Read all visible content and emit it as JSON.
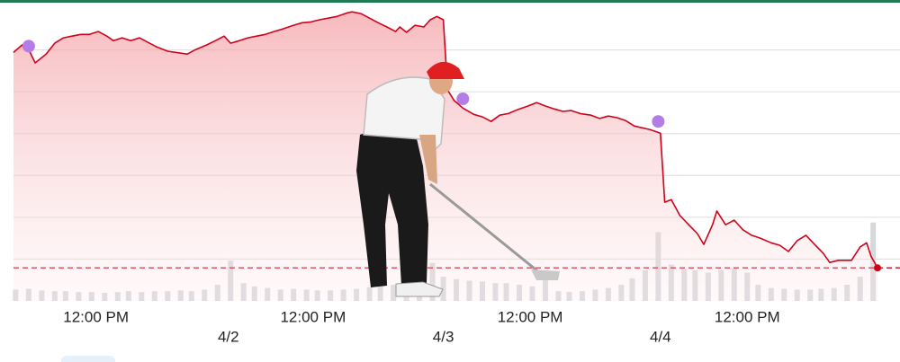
{
  "chart_data": {
    "type": "line",
    "x": [
      0,
      0.04,
      0.07,
      0.1,
      0.15,
      0.19,
      0.23,
      0.27,
      0.31,
      0.35,
      0.39,
      0.43,
      0.46,
      0.5,
      0.54,
      0.58,
      0.62,
      0.66,
      0.71,
      0.75,
      0.8,
      0.84,
      0.89,
      0.93,
      0.97,
      1.0,
      1.04,
      1.08,
      1.12,
      1.16,
      1.2,
      1.24,
      1.29,
      1.33,
      1.37,
      1.41,
      1.45,
      1.49,
      1.54,
      1.56,
      1.6,
      1.64,
      1.68,
      1.72,
      1.76,
      1.78,
      1.81,
      1.85,
      1.89,
      1.92,
      1.95,
      1.98,
      2.0,
      2.03,
      2.07,
      2.12,
      2.16,
      2.2,
      2.24,
      2.28,
      2.32,
      2.37,
      2.41,
      2.45,
      2.49,
      2.53,
      2.57,
      2.61,
      2.66,
      2.7,
      2.74,
      2.78,
      2.82,
      2.86,
      2.93,
      2.98,
      3.0,
      3.03,
      3.07,
      3.11,
      3.15,
      3.18,
      3.22,
      3.24,
      3.28,
      3.32,
      3.36,
      3.4,
      3.44,
      3.49,
      3.53,
      3.57,
      3.61,
      3.65,
      3.69,
      3.73,
      3.76,
      3.8,
      3.86,
      3.9,
      3.93,
      3.95,
      3.98
    ],
    "series": [
      {
        "color": "#d0021b",
        "values": [
          5.94,
          6.12,
          6.01,
          5.69,
          5.9,
          6.16,
          6.29,
          6.33,
          6.37,
          6.37,
          6.44,
          6.33,
          6.22,
          6.29,
          6.22,
          6.29,
          6.18,
          6.07,
          5.97,
          5.94,
          5.9,
          6.01,
          6.12,
          6.22,
          6.33,
          6.16,
          6.22,
          6.29,
          6.33,
          6.37,
          6.44,
          6.5,
          6.59,
          6.65,
          6.67,
          6.72,
          6.76,
          6.8,
          6.89,
          6.91,
          6.87,
          6.76,
          6.65,
          6.55,
          6.44,
          6.55,
          6.42,
          6.59,
          6.55,
          6.72,
          6.8,
          6.72,
          5.04,
          4.79,
          4.61,
          4.46,
          4.4,
          4.29,
          4.44,
          4.48,
          4.57,
          4.66,
          4.74,
          4.66,
          4.59,
          4.53,
          4.55,
          4.48,
          4.44,
          4.36,
          4.42,
          4.38,
          4.31,
          4.18,
          4.1,
          4.01,
          2.36,
          2.42,
          2.04,
          1.82,
          1.61,
          1.35,
          1.82,
          2.15,
          1.82,
          1.93,
          1.7,
          1.57,
          1.5,
          1.39,
          1.33,
          1.18,
          1.44,
          1.57,
          1.35,
          1.14,
          0.92,
          0.97,
          0.97,
          1.29,
          1.39,
          1.07,
          0.79
        ]
      }
    ],
    "xlim": [
      0,
      3.98
    ],
    "ylim": [
      0,
      7
    ],
    "yticks": [
      1,
      2,
      3,
      4,
      5,
      6
    ],
    "grid": true,
    "xticks": [
      {
        "value": 0.38,
        "label": "12:00 PM"
      },
      {
        "value": 1.38,
        "label": "12:00 PM"
      },
      {
        "value": 2.38,
        "label": "12:00 PM"
      },
      {
        "value": 3.38,
        "label": "12:00 PM"
      }
    ],
    "date_ticks": [
      {
        "value": 0.99,
        "label": "4/2"
      },
      {
        "value": 1.98,
        "label": "4/3"
      },
      {
        "value": 2.98,
        "label": "4/4"
      }
    ],
    "reference": {
      "value": 0.79,
      "color": "#d0021b"
    },
    "markers": {
      "x": [
        0.07,
        2.07,
        2.97
      ],
      "values": [
        6.09,
        4.83,
        4.29
      ],
      "color": "#b57be6"
    },
    "volume": {
      "color": "#d6d9dc",
      "vlim": [
        0,
        100
      ],
      "x": [
        0.01,
        0.07,
        0.13,
        0.19,
        0.24,
        0.3,
        0.36,
        0.42,
        0.48,
        0.53,
        0.59,
        0.65,
        0.71,
        0.77,
        0.82,
        0.88,
        0.94,
        1.0,
        1.06,
        1.11,
        1.17,
        1.23,
        1.29,
        1.35,
        1.4,
        1.46,
        1.52,
        1.58,
        1.64,
        1.69,
        1.75,
        1.81,
        1.87,
        1.93,
        1.98,
        2.04,
        2.1,
        2.16,
        2.22,
        2.27,
        2.33,
        2.39,
        2.45,
        2.51,
        2.56,
        2.62,
        2.68,
        2.74,
        2.8,
        2.85,
        2.91,
        2.97,
        3.03,
        3.09,
        3.14,
        3.2,
        3.26,
        3.32,
        3.38,
        3.43,
        3.49,
        3.55,
        3.61,
        3.67,
        3.72,
        3.78,
        3.84,
        3.9,
        3.96
      ],
      "values": [
        14,
        15,
        13,
        12,
        12,
        11,
        11,
        10,
        11,
        12,
        11,
        12,
        12,
        13,
        12,
        14,
        20,
        50,
        22,
        18,
        16,
        14,
        15,
        14,
        13,
        13,
        14,
        15,
        17,
        18,
        20,
        25,
        30,
        47,
        30,
        27,
        25,
        24,
        22,
        22,
        20,
        18,
        36,
        12,
        11,
        12,
        14,
        16,
        20,
        28,
        38,
        85,
        45,
        40,
        38,
        35,
        38,
        40,
        35,
        20,
        16,
        15,
        14,
        14,
        15,
        16,
        20,
        30,
        97
      ]
    }
  }
}
